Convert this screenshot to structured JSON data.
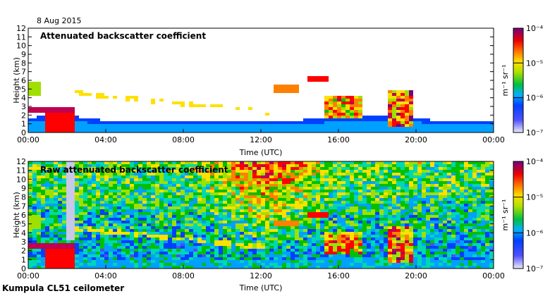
{
  "date_label": "8 Aug 2015",
  "footer_label": "Kumpula CL51 ceilometer",
  "colors": {
    "colormap": [
      "#e8e8f6",
      "#4d4dff",
      "#0040ff",
      "#00a0ff",
      "#00d8b0",
      "#00c000",
      "#a0e000",
      "#ffe000",
      "#ff8000",
      "#ff0000",
      "#c00050",
      "#7a007a"
    ]
  },
  "chart_data": [
    {
      "type": "heatmap",
      "title": "Attenuated backscatter coefficient",
      "xlabel": "Time (UTC)",
      "ylabel": "Height (km)",
      "xlim": [
        "00:00",
        "00:00"
      ],
      "ylim": [
        0,
        12
      ],
      "x_ticks": [
        "00:00",
        "04:00",
        "08:00",
        "12:00",
        "16:00",
        "20:00",
        "00:00"
      ],
      "y_ticks": [
        0,
        1,
        2,
        3,
        4,
        5,
        6,
        7,
        8,
        9,
        10,
        11,
        12
      ],
      "colorbar": {
        "scale": "log",
        "range": [
          1e-07,
          0.0001
        ],
        "unit_label": "m⁻¹ sr⁻¹",
        "ticks": [
          "10⁻⁷",
          "10⁻⁶",
          "10⁻⁵",
          "10⁻⁴"
        ]
      },
      "noise_filtered": true
    },
    {
      "type": "heatmap",
      "title": "Raw attenuated backscatter coefficient",
      "xlabel": "Time (UTC)",
      "ylabel": "Height (km)",
      "xlim": [
        "00:00",
        "00:00"
      ],
      "ylim": [
        0,
        12
      ],
      "x_ticks": [
        "00:00",
        "04:00",
        "08:00",
        "12:00",
        "16:00",
        "20:00",
        "00:00"
      ],
      "y_ticks": [
        0,
        1,
        2,
        3,
        4,
        5,
        6,
        7,
        8,
        9,
        10,
        11,
        12
      ],
      "colorbar": {
        "scale": "log",
        "range": [
          1e-07,
          0.0001
        ],
        "unit_label": "m⁻¹ sr⁻¹",
        "ticks": [
          "10⁻⁷",
          "10⁻⁶",
          "10⁻⁵",
          "10⁻⁴"
        ]
      },
      "noise_filtered": false
    }
  ]
}
